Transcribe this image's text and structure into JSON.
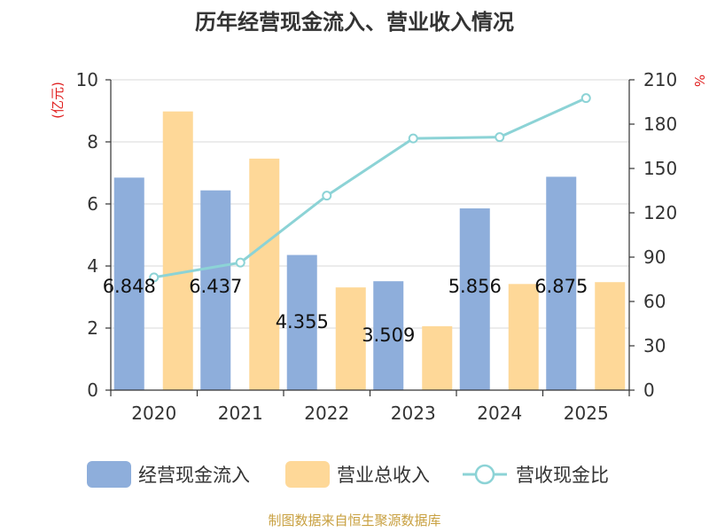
{
  "title": "历年经营现金流入、营业收入情况",
  "source": "制图数据来自恒生聚源数据库",
  "chart_data": {
    "type": "bar",
    "categories": [
      "2020",
      "2021",
      "2022",
      "2023",
      "2024",
      "2025"
    ],
    "series": [
      {
        "name": "经营现金流入",
        "kind": "bar",
        "axis": "left",
        "color": "#8eaedb",
        "values": [
          6.848,
          6.437,
          4.355,
          3.509,
          5.856,
          6.875
        ]
      },
      {
        "name": "营业总收入",
        "kind": "bar",
        "axis": "left",
        "color": "#fed898",
        "values": [
          8.98,
          7.46,
          3.31,
          2.06,
          3.42,
          3.48
        ]
      },
      {
        "name": "营收现金比",
        "kind": "line",
        "axis": "right",
        "color": "#8cd3d6",
        "values": [
          76.3,
          86.3,
          131.6,
          170.3,
          171.2,
          197.6
        ]
      }
    ],
    "data_labels": [
      "6.848",
      "6.437",
      "4.355",
      "3.509",
      "5.856",
      "6.875"
    ],
    "left_axis": {
      "label": "(亿元)",
      "ylim": [
        0,
        10
      ],
      "ticks": [
        "0",
        "2",
        "4",
        "6",
        "8",
        "10"
      ]
    },
    "right_axis": {
      "label": "%",
      "ylim": [
        0,
        210
      ],
      "ticks": [
        "0",
        "30",
        "60",
        "90",
        "120",
        "150",
        "180",
        "210"
      ]
    },
    "grid": true,
    "legend_position": "bottom"
  }
}
